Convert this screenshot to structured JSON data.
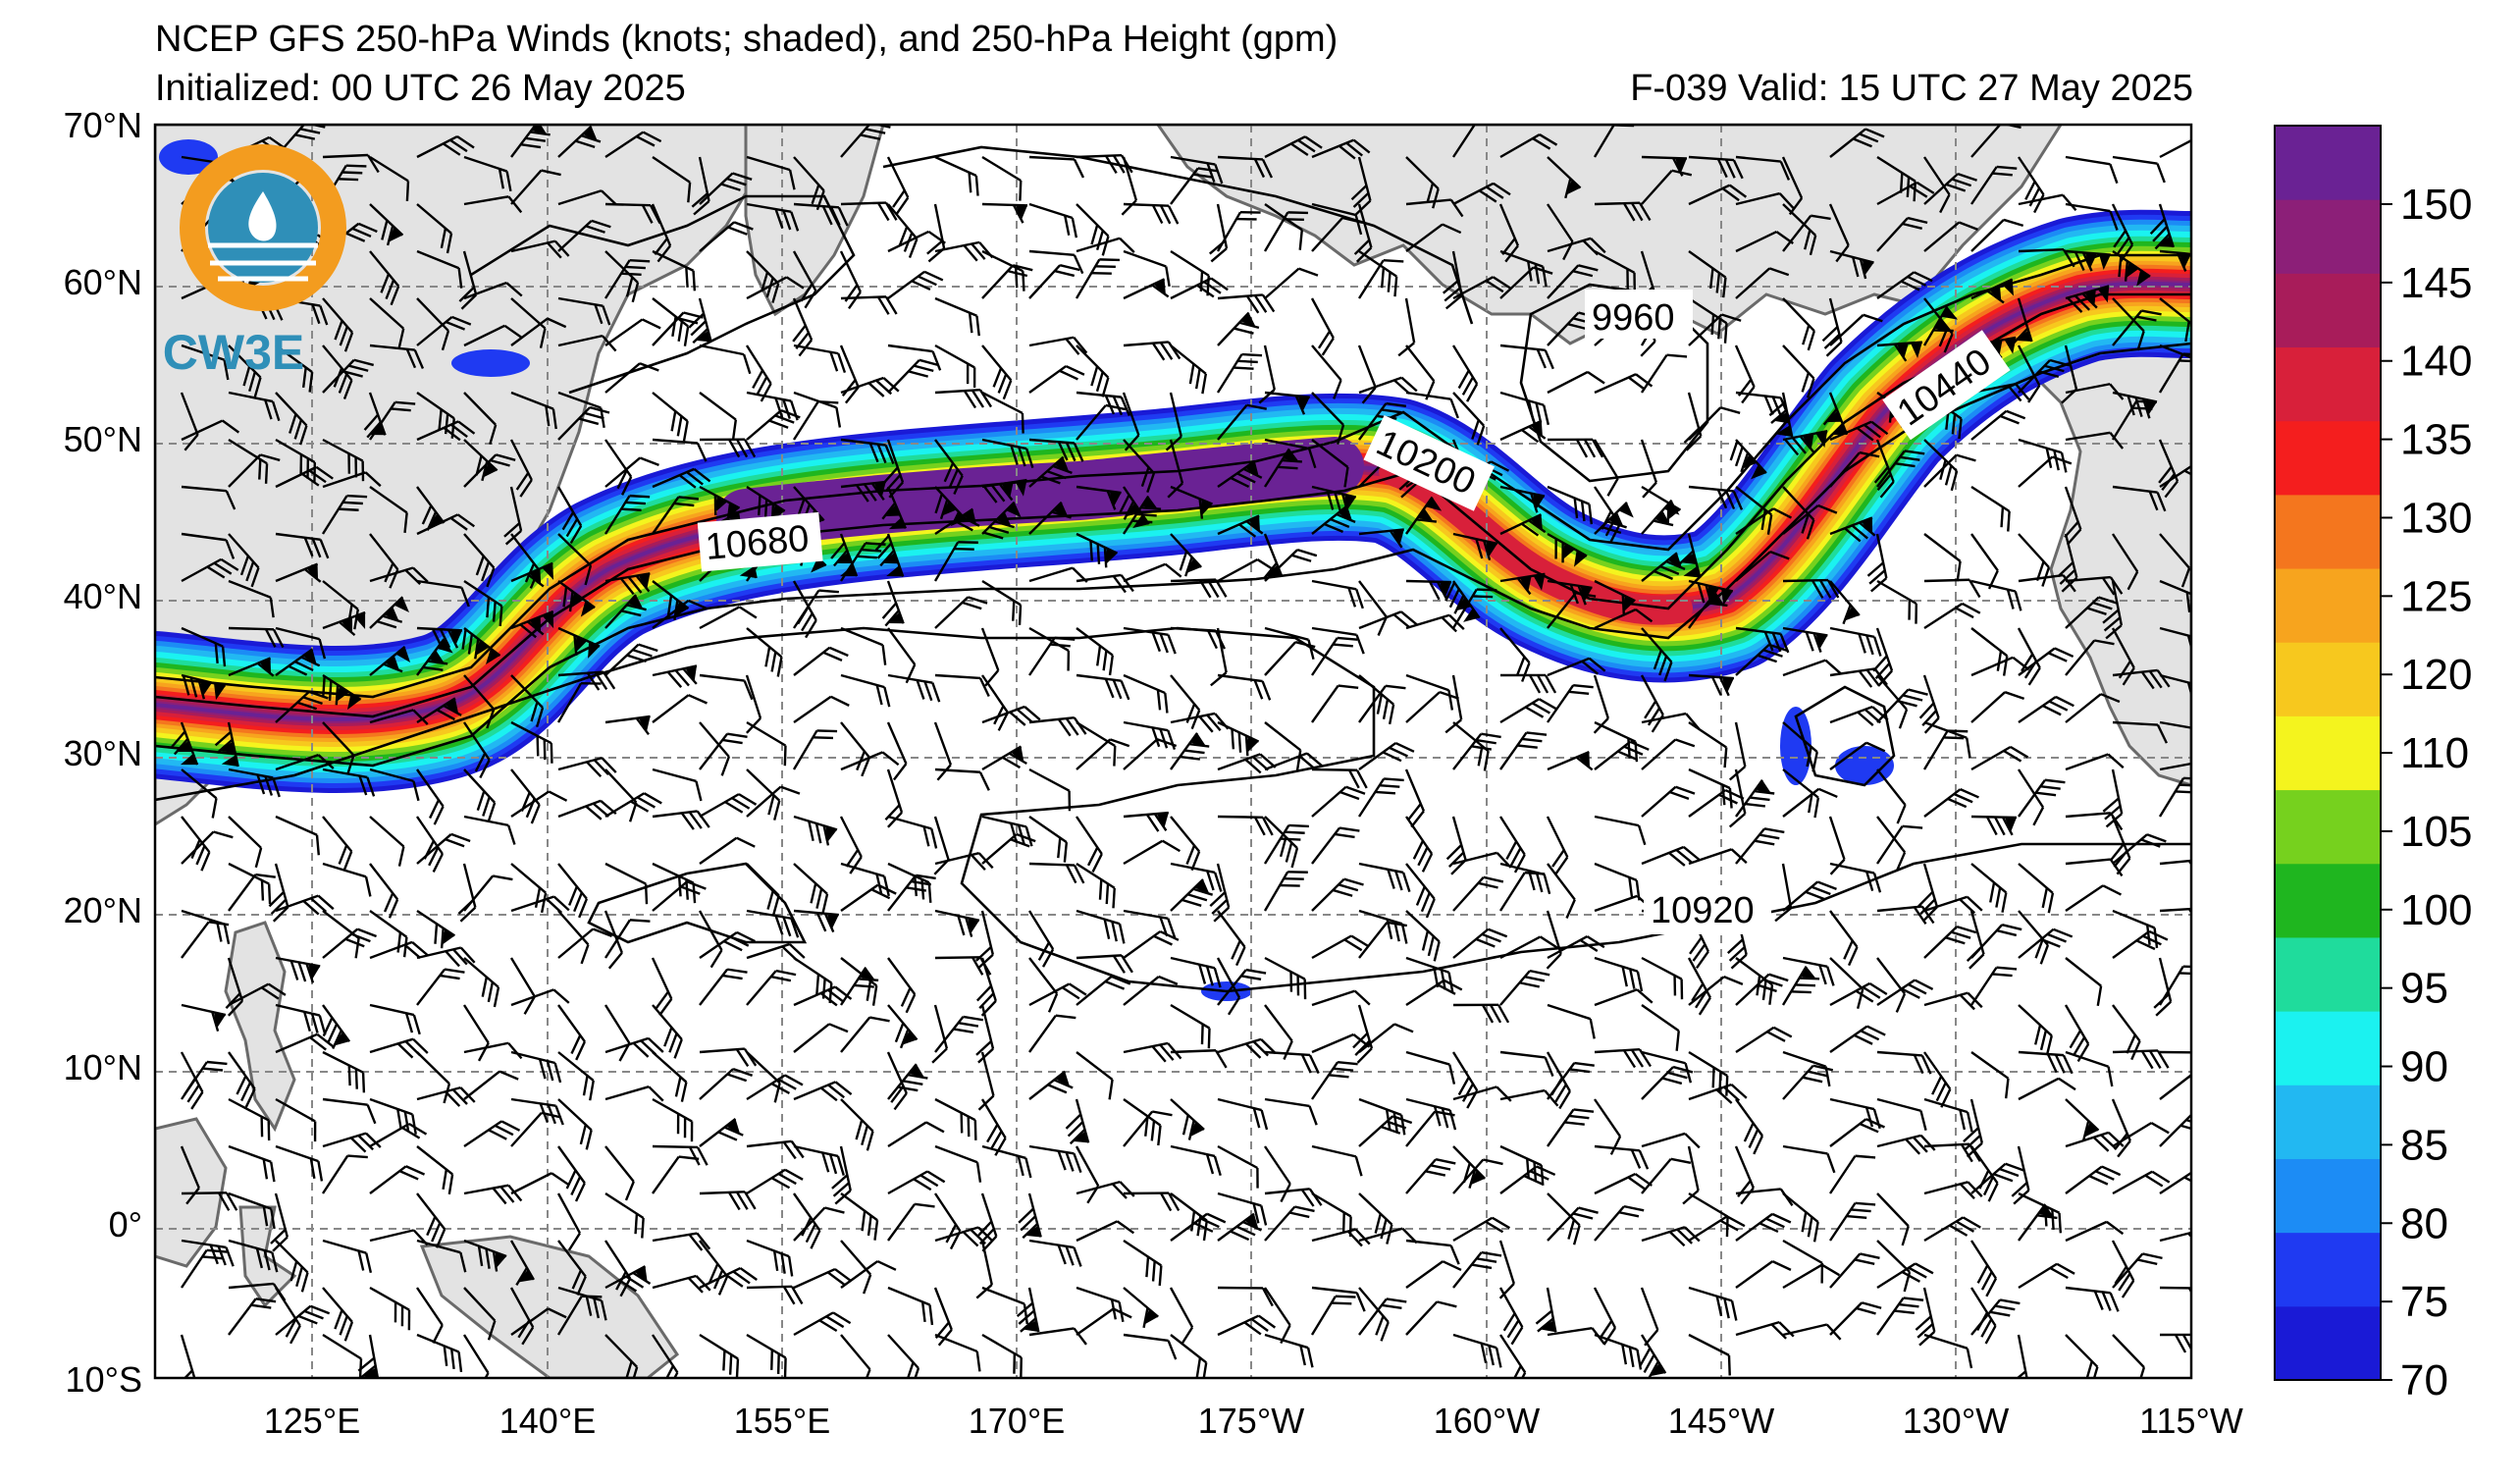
{
  "header": {
    "title": "NCEP GFS 250-hPa Winds (knots; shaded), and 250-hPa Height (gpm)",
    "initialized": "Initialized: 00 UTC 26 May 2025",
    "valid": "F-039  Valid: 15 UTC 27 May 2025"
  },
  "logo": {
    "text": "CW3E",
    "ring_color": "#f39c1f",
    "wave_color": "#2f8fb8"
  },
  "axes": {
    "lat_labels": [
      "70°N",
      "60°N",
      "50°N",
      "40°N",
      "30°N",
      "20°N",
      "10°N",
      "0°",
      "10°S"
    ],
    "lon_labels": [
      "125°E",
      "140°E",
      "155°E",
      "170°E",
      "175°W",
      "160°W",
      "145°W",
      "130°W",
      "115°W"
    ]
  },
  "contour_labels": [
    "9960",
    "10200",
    "10440",
    "10680",
    "10920"
  ],
  "colorbar": {
    "ticks": [
      "70",
      "75",
      "80",
      "85",
      "90",
      "95",
      "100",
      "105",
      "110",
      "120",
      "125",
      "130",
      "135",
      "140",
      "145",
      "150"
    ],
    "colors": [
      "#1a1ad6",
      "#1f3af2",
      "#1c8cf5",
      "#22b8f2",
      "#1bf2f0",
      "#1fdc9c",
      "#1fb61f",
      "#76d11e",
      "#f4f41e",
      "#f7c81e",
      "#f7a41e",
      "#f4761e",
      "#f41e1e",
      "#d8203a",
      "#a81c5a",
      "#8c1f78",
      "#6a2294"
    ]
  },
  "land_color": "#e3e3e3",
  "grid_color": "#888888"
}
